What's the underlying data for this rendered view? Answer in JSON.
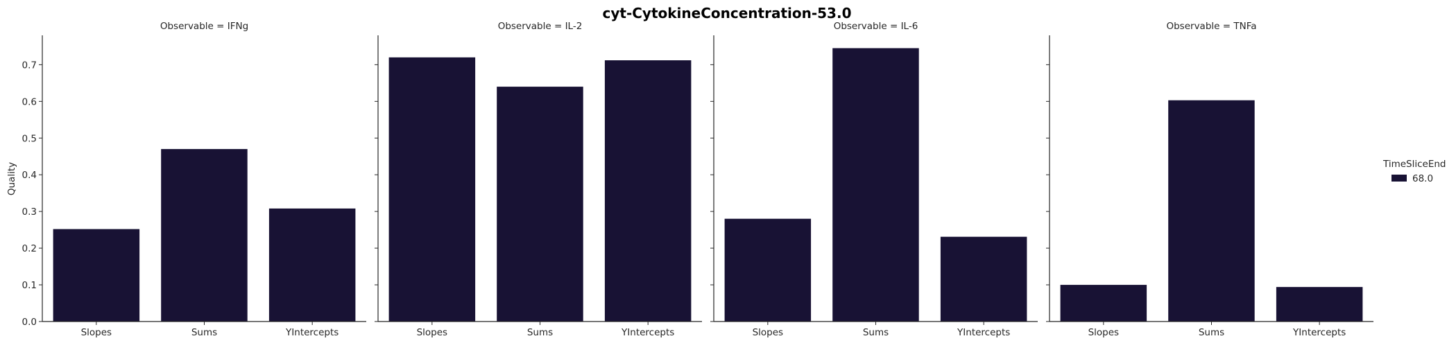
{
  "chart_data": {
    "type": "bar",
    "title": "cyt-CytokineConcentration-53.0",
    "ylabel": "Quality",
    "ylim": [
      0,
      0.78
    ],
    "yticks": [
      "0.0",
      "0.1",
      "0.2",
      "0.3",
      "0.4",
      "0.5",
      "0.6",
      "0.7"
    ],
    "categories": [
      "Slopes",
      "Sums",
      "YIntercepts"
    ],
    "bar_color": "#181234",
    "legend": {
      "title": "TimeSliceEnd",
      "entries": [
        "68.0"
      ],
      "placement": "right"
    },
    "facets": [
      {
        "title": "Observable = IFNg",
        "values": [
          0.252,
          0.47,
          0.308
        ]
      },
      {
        "title": "Observable = IL-2",
        "values": [
          0.72,
          0.64,
          0.712
        ]
      },
      {
        "title": "Observable = IL-6",
        "values": [
          0.28,
          0.745,
          0.231
        ]
      },
      {
        "title": "Observable = TNFa",
        "values": [
          0.1,
          0.603,
          0.094
        ]
      }
    ]
  }
}
